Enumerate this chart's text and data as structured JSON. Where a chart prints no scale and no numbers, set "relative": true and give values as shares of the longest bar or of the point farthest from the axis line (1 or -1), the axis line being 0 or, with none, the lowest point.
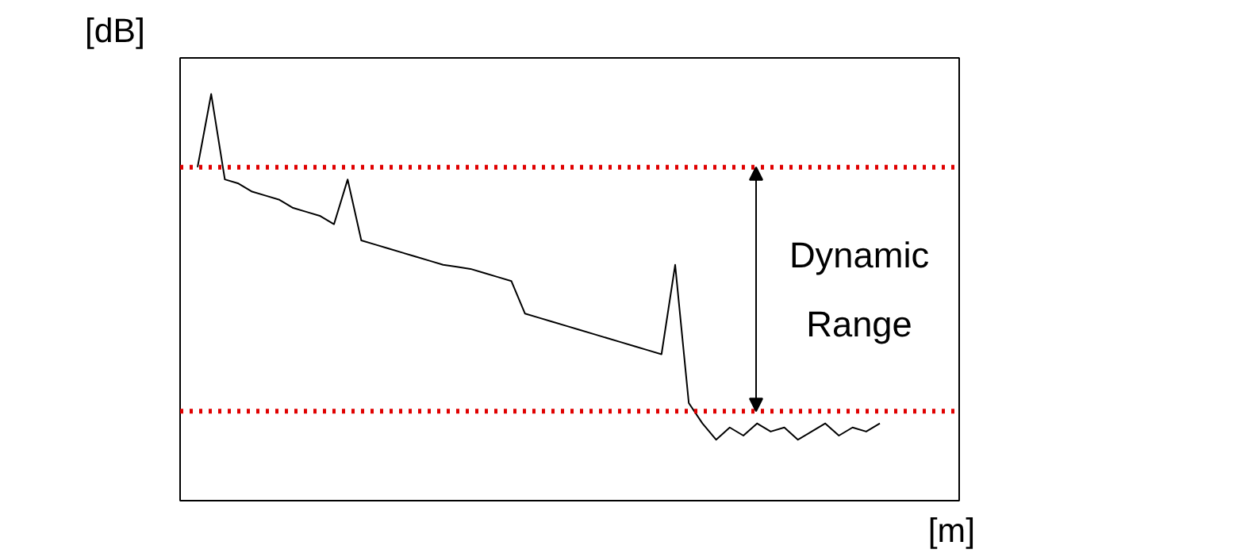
{
  "chart_data": {
    "type": "line",
    "relative": true,
    "xlabel": "[m]",
    "ylabel": "[dB]",
    "grid": false,
    "marker": "none",
    "line_style": "solid",
    "categories": [
      null,
      null,
      null,
      null,
      null,
      null,
      null,
      null,
      null,
      null,
      null,
      null,
      null,
      null,
      null,
      null,
      null,
      null,
      null,
      null,
      null,
      null,
      null,
      null,
      null,
      null,
      null,
      null,
      null,
      null,
      null,
      null,
      null,
      null,
      null,
      null,
      null,
      null,
      null,
      null,
      null,
      null,
      null,
      null,
      null,
      null,
      null,
      null,
      null,
      null,
      null
    ],
    "series": [
      {
        "color": "#000000",
        "values": [
          0.82,
          1.0,
          0.79,
          0.78,
          0.76,
          0.75,
          0.74,
          0.72,
          0.71,
          0.7,
          0.68,
          0.79,
          0.64,
          0.63,
          0.62,
          0.61,
          0.6,
          0.59,
          0.58,
          0.575,
          0.57,
          0.56,
          0.55,
          0.54,
          0.46,
          0.45,
          0.44,
          0.43,
          0.42,
          0.41,
          0.4,
          0.39,
          0.38,
          0.37,
          0.36,
          0.58,
          0.24,
          0.19,
          0.15,
          0.18,
          0.16,
          0.19,
          0.17,
          0.18,
          0.15,
          0.17,
          0.19,
          0.16,
          0.18,
          0.17,
          0.19
        ]
      }
    ],
    "ref_lines": [
      {
        "axis": "y",
        "value": 0.82,
        "color": "#e00000",
        "line_style": "dotted"
      },
      {
        "axis": "y",
        "value": 0.22,
        "color": "#e00000",
        "line_style": "dotted"
      }
    ],
    "annotations": [
      "Dynamic Range"
    ]
  }
}
